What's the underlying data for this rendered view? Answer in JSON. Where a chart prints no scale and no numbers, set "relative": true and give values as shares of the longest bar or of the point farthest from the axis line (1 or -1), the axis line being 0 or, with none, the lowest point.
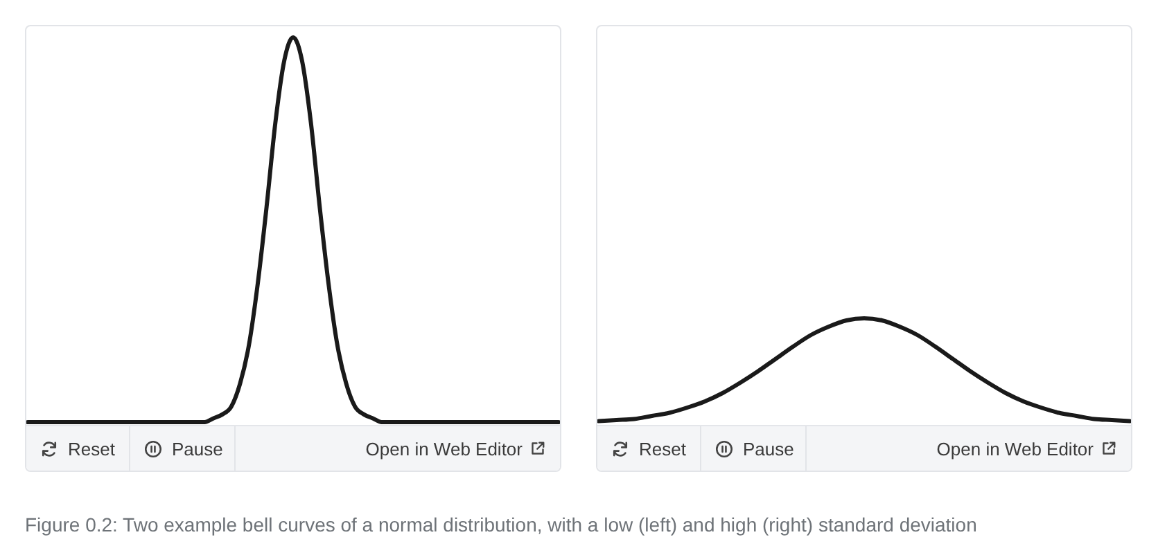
{
  "chart_data": [
    {
      "type": "line",
      "relative": true,
      "tick_labels": false,
      "color": "#1a1a1a",
      "categories": [
        null,
        null,
        null,
        null,
        null,
        null,
        null,
        null,
        null,
        null,
        null,
        null,
        null,
        null,
        null,
        null,
        null,
        null,
        null,
        null,
        null,
        null,
        null,
        null,
        null,
        null,
        null,
        null,
        null,
        null,
        null,
        null,
        null,
        null,
        null,
        null,
        null,
        null,
        null,
        null,
        null,
        null,
        null,
        null,
        null,
        null,
        null,
        null,
        null,
        null,
        null,
        null,
        null,
        null,
        null,
        null,
        null,
        null,
        null,
        null,
        null
      ],
      "values": [
        0,
        0,
        0,
        0,
        0,
        0,
        0,
        0,
        0,
        0,
        0,
        0,
        0,
        0,
        0,
        0,
        0,
        0,
        0,
        0,
        0,
        0.01,
        0.02,
        0.04,
        0.1,
        0.2,
        0.36,
        0.56,
        0.78,
        0.94,
        1,
        0.94,
        0.78,
        0.56,
        0.36,
        0.2,
        0.1,
        0.04,
        0.02,
        0.01,
        0,
        0,
        0,
        0,
        0,
        0,
        0,
        0,
        0,
        0,
        0,
        0,
        0,
        0,
        0,
        0,
        0,
        0,
        0,
        0,
        0
      ],
      "annotations": [
        "Reset",
        "Pause",
        "Open in Web Editor"
      ]
    },
    {
      "type": "line",
      "relative": true,
      "tick_labels": false,
      "color": "#1a1a1a",
      "categories": [
        null,
        null,
        null,
        null,
        null,
        null,
        null,
        null,
        null,
        null,
        null,
        null,
        null,
        null,
        null,
        null,
        null,
        null,
        null,
        null,
        null,
        null,
        null,
        null,
        null,
        null,
        null,
        null,
        null,
        null,
        null
      ],
      "values": [
        0.01,
        0.02,
        0.03,
        0.06,
        0.09,
        0.14,
        0.2,
        0.28,
        0.38,
        0.49,
        0.61,
        0.73,
        0.84,
        0.92,
        0.98,
        1,
        0.98,
        0.92,
        0.84,
        0.73,
        0.61,
        0.49,
        0.38,
        0.28,
        0.2,
        0.14,
        0.09,
        0.06,
        0.03,
        0.02,
        0.01
      ],
      "annotations": [
        "Reset",
        "Pause",
        "Open in Web Editor",
        "Figure 0.2: Two example bell curves of a normal distribution, with a low (left) and high (right) standard deviation"
      ]
    }
  ]
}
